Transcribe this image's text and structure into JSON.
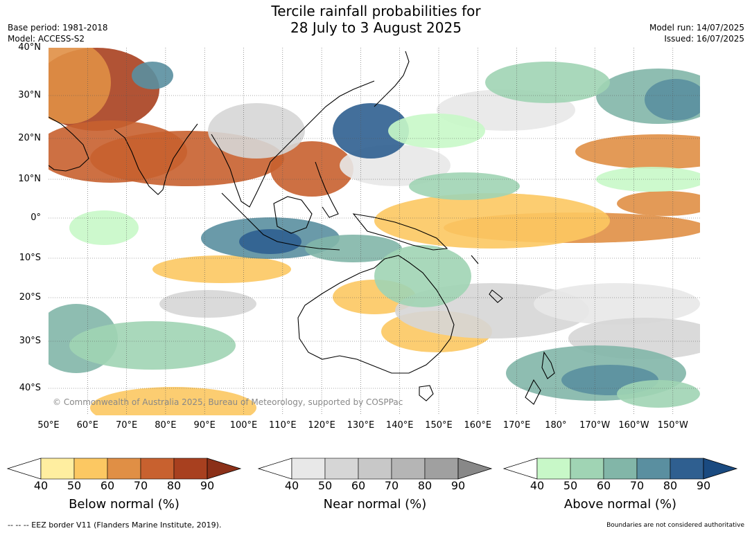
{
  "header": {
    "title_line1": "Tercile rainfall probabilities for",
    "title_line2": "28 July to 3 August 2025",
    "base_period": "Base period: 1981-2018",
    "model": "Model: ACCESS-S2",
    "model_run": "Model run: 14/07/2025",
    "issued": "Issued: 16/07/2025"
  },
  "map": {
    "copyright": "© Commonwealth of Australia 2025, Bureau of Meteorology, supported by COSPPac",
    "lat_labels": [
      "40°N",
      "30°N",
      "20°N",
      "10°N",
      "0°",
      "10°S",
      "20°S",
      "30°S",
      "40°S"
    ],
    "lon_labels": [
      "50°E",
      "60°E",
      "70°E",
      "80°E",
      "90°E",
      "100°E",
      "110°E",
      "120°E",
      "130°E",
      "140°E",
      "150°E",
      "160°E",
      "170°E",
      "180°",
      "170°W",
      "160°W",
      "150°W"
    ],
    "colors": {
      "below": [
        "#ffeea0",
        "#fcc862",
        "#e08f45",
        "#c8612f",
        "#a8401f",
        "#8b3018"
      ],
      "near": [
        "#e8e8e8",
        "#d6d6d6",
        "#c8c8c8",
        "#b5b5b5",
        "#a0a0a0",
        "#888888"
      ],
      "above": [
        "#c8f8c8",
        "#a0d4b4",
        "#82b6a8",
        "#5a8fa0",
        "#2f5f90",
        "#1a4a80"
      ]
    }
  },
  "colorbars": [
    {
      "title": "Below normal (%)",
      "ticks": [
        "40",
        "50",
        "60",
        "70",
        "80",
        "90"
      ]
    },
    {
      "title": "Near normal (%)",
      "ticks": [
        "40",
        "50",
        "60",
        "70",
        "80",
        "90"
      ]
    },
    {
      "title": "Above normal (%)",
      "ticks": [
        "40",
        "50",
        "60",
        "70",
        "80",
        "90"
      ]
    }
  ],
  "footer": {
    "eez": "--  --  -- EEZ border V11 (Flanders Marine Institute, 2019).",
    "disclaimer": "Boundaries are not considered authoritative"
  }
}
